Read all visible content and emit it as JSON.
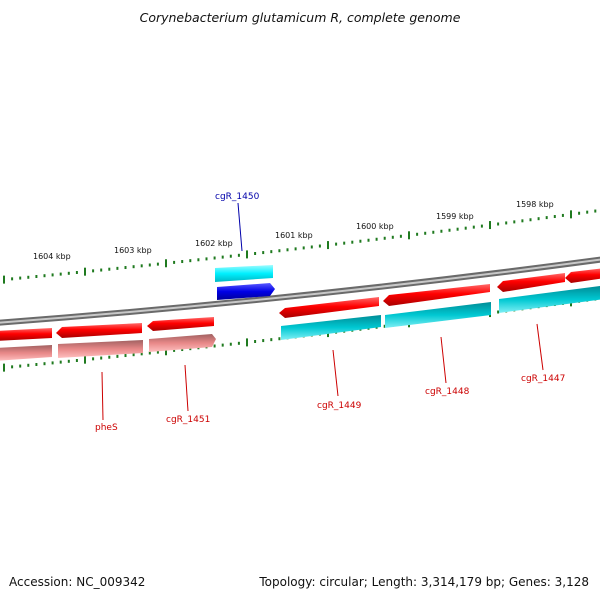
{
  "title": "Corynebacterium glutamicum R, complete genome",
  "footer": {
    "accession": "Accession: NC_009342",
    "summary": "Topology: circular; Length: 3,314,179 bp; Genes: 3,128"
  },
  "colors": {
    "backbone": "#8c8c8c",
    "tick": "#1f7a1f",
    "forward_gene": "#e60000",
    "reverse_gene": "#e67a7a",
    "cyan_gene": "#00c8d2",
    "highlight_gene": "#0000e6",
    "highlight_label": "#0000aa",
    "label": "#cc0000"
  },
  "scale_labels": [
    "1604 kbp",
    "1603 kbp",
    "1602 kbp",
    "1601 kbp",
    "1600 kbp",
    "1599 kbp",
    "1598 kbp"
  ],
  "genes": [
    {
      "label": "pheS"
    },
    {
      "label": "cgR_1451"
    },
    {
      "label": "cgR_1450"
    },
    {
      "label": "cgR_1449"
    },
    {
      "label": "cgR_1448"
    },
    {
      "label": "cgR_1447"
    }
  ]
}
